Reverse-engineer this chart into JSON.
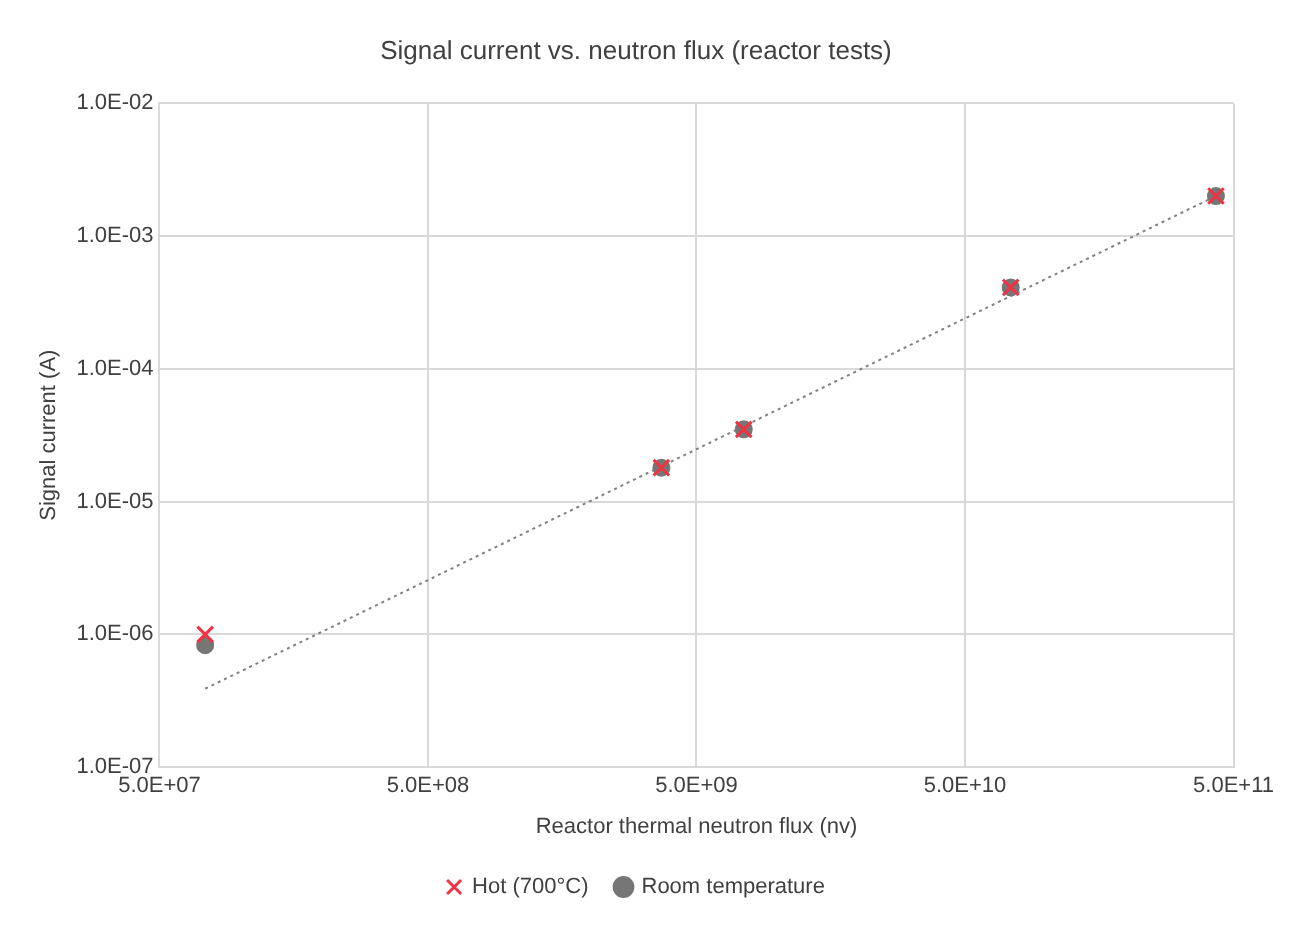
{
  "chart_data": {
    "type": "scatter",
    "title": "Signal current vs. neutron flux (reactor tests)",
    "xlabel": "Reactor thermal neutron flux (nv)",
    "ylabel": "Signal current (A)",
    "x": [
      74000000.0,
      3700000000.0,
      7500000000.0,
      74000000000.0,
      430000000000.0
    ],
    "series": [
      {
        "name": "Room temperature",
        "color": "#767676",
        "marker": "circle",
        "values": [
          8.3e-07,
          1.8e-05,
          3.5e-05,
          0.00041,
          0.002
        ]
      },
      {
        "name": "Hot (700°C)",
        "color": "#ee3344",
        "marker": "cross",
        "values": [
          1e-06,
          1.8e-05,
          3.5e-05,
          0.00041,
          0.002
        ]
      },
      {
        "type": "line",
        "color": "#808080",
        "line_style": "dotted",
        "marker": "none",
        "x": [
          74000000.0,
          430000000000.0
        ],
        "values": [
          3.9e-07,
          0.002
        ]
      }
    ],
    "log": "xy",
    "xlim": [
      50000000.0,
      500000000000.0
    ],
    "xticks": [
      {
        "value": 50000000.0,
        "label": "5.0E+07"
      },
      {
        "value": 500000000.0,
        "label": "5.0E+08"
      },
      {
        "value": 5000000000.0,
        "label": "5.0E+09"
      },
      {
        "value": 50000000000.0,
        "label": "5.0E+10"
      },
      {
        "value": 500000000000.0,
        "label": "5.0E+11"
      }
    ],
    "ylim": [
      1e-07,
      0.01
    ],
    "yticks": [
      {
        "value": 1e-07,
        "label": "1.0E-07"
      },
      {
        "value": 1e-06,
        "label": "1.0E-06"
      },
      {
        "value": 1e-05,
        "label": "1.0E-05"
      },
      {
        "value": 0.0001,
        "label": "1.0E-04"
      },
      {
        "value": 0.001,
        "label": "1.0E-03"
      },
      {
        "value": 0.01,
        "label": "1.0E-02"
      }
    ],
    "grid": true,
    "legend": "bottom"
  }
}
